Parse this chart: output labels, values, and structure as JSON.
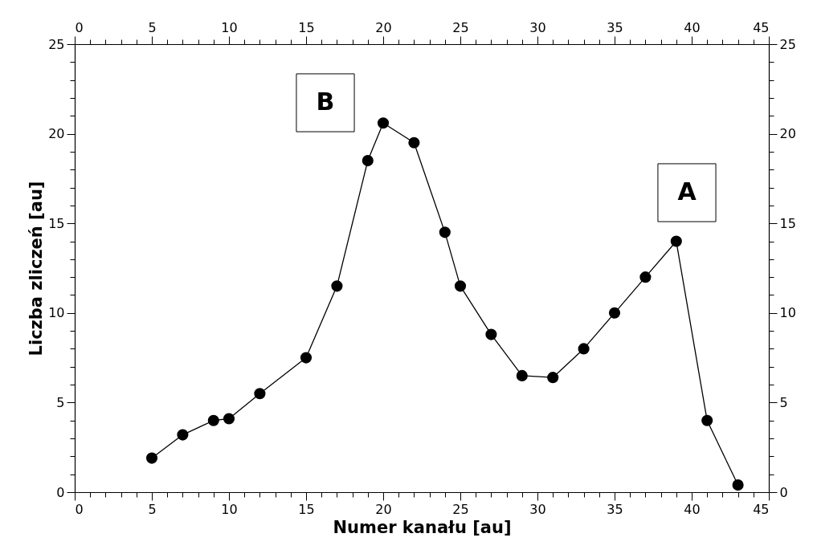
{
  "chart_data": {
    "type": "line",
    "xlabel": "Numer kanału  [au]",
    "ylabel": "Liczba zliczeń  [au]",
    "x": [
      5,
      7,
      9,
      10,
      12,
      15,
      17,
      19,
      20,
      22,
      24,
      25,
      27,
      29,
      31,
      33,
      35,
      37,
      39,
      41,
      43
    ],
    "series": [
      {
        "color": "#000000",
        "values": [
          1.9,
          3.2,
          4.0,
          4.1,
          5.5,
          7.5,
          11.5,
          18.5,
          20.6,
          19.5,
          14.5,
          11.5,
          8.8,
          6.5,
          6.4,
          8.0,
          10.0,
          12.0,
          14.0,
          4.0,
          0.4
        ]
      }
    ],
    "marker": "circle",
    "line_style": "solid",
    "legend": false,
    "xlim": [
      0,
      45
    ],
    "ylim": [
      0,
      25
    ],
    "x2lim": [
      0,
      45
    ],
    "y2lim": [
      0,
      25
    ],
    "xticks": [
      0,
      {
        "value": 1,
        "label": null
      },
      {
        "value": 2,
        "label": null
      },
      {
        "value": 3,
        "label": null
      },
      {
        "value": 4,
        "label": null
      },
      5,
      {
        "value": 6,
        "label": null
      },
      {
        "value": 7,
        "label": null
      },
      {
        "value": 8,
        "label": null
      },
      {
        "value": 9,
        "label": null
      },
      10,
      {
        "value": 11,
        "label": null
      },
      {
        "value": 12,
        "label": null
      },
      {
        "value": 13,
        "label": null
      },
      {
        "value": 14,
        "label": null
      },
      15,
      {
        "value": 16,
        "label": null
      },
      {
        "value": 17,
        "label": null
      },
      {
        "value": 18,
        "label": null
      },
      {
        "value": 19,
        "label": null
      },
      20,
      {
        "value": 21,
        "label": null
      },
      {
        "value": 22,
        "label": null
      },
      {
        "value": 23,
        "label": null
      },
      {
        "value": 24,
        "label": null
      },
      25,
      {
        "value": 26,
        "label": null
      },
      {
        "value": 27,
        "label": null
      },
      {
        "value": 28,
        "label": null
      },
      {
        "value": 29,
        "label": null
      },
      30,
      {
        "value": 31,
        "label": null
      },
      {
        "value": 32,
        "label": null
      },
      {
        "value": 33,
        "label": null
      },
      {
        "value": 34,
        "label": null
      },
      35,
      {
        "value": 36,
        "label": null
      },
      {
        "value": 37,
        "label": null
      },
      {
        "value": 38,
        "label": null
      },
      {
        "value": 39,
        "label": null
      },
      40,
      {
        "value": 41,
        "label": null
      },
      {
        "value": 42,
        "label": null
      },
      {
        "value": 43,
        "label": null
      },
      {
        "value": 44,
        "label": null
      },
      45
    ],
    "x2ticks": [
      0,
      {
        "value": 1,
        "label": null
      },
      {
        "value": 2,
        "label": null
      },
      {
        "value": 3,
        "label": null
      },
      {
        "value": 4,
        "label": null
      },
      5,
      {
        "value": 6,
        "label": null
      },
      {
        "value": 7,
        "label": null
      },
      {
        "value": 8,
        "label": null
      },
      {
        "value": 9,
        "label": null
      },
      10,
      {
        "value": 11,
        "label": null
      },
      {
        "value": 12,
        "label": null
      },
      {
        "value": 13,
        "label": null
      },
      {
        "value": 14,
        "label": null
      },
      15,
      {
        "value": 16,
        "label": null
      },
      {
        "value": 17,
        "label": null
      },
      {
        "value": 18,
        "label": null
      },
      {
        "value": 19,
        "label": null
      },
      20,
      {
        "value": 21,
        "label": null
      },
      {
        "value": 22,
        "label": null
      },
      {
        "value": 23,
        "label": null
      },
      {
        "value": 24,
        "label": null
      },
      25,
      {
        "value": 26,
        "label": null
      },
      {
        "value": 27,
        "label": null
      },
      {
        "value": 28,
        "label": null
      },
      {
        "value": 29,
        "label": null
      },
      30,
      {
        "value": 31,
        "label": null
      },
      {
        "value": 32,
        "label": null
      },
      {
        "value": 33,
        "label": null
      },
      {
        "value": 34,
        "label": null
      },
      35,
      {
        "value": 36,
        "label": null
      },
      {
        "value": 37,
        "label": null
      },
      {
        "value": 38,
        "label": null
      },
      {
        "value": 39,
        "label": null
      },
      40,
      {
        "value": 41,
        "label": null
      },
      {
        "value": 42,
        "label": null
      },
      {
        "value": 43,
        "label": null
      },
      {
        "value": 44,
        "label": null
      },
      45
    ],
    "yticks": [
      0,
      {
        "value": 1,
        "label": null
      },
      {
        "value": 2,
        "label": null
      },
      {
        "value": 3,
        "label": null
      },
      {
        "value": 4,
        "label": null
      },
      5,
      {
        "value": 6,
        "label": null
      },
      {
        "value": 7,
        "label": null
      },
      {
        "value": 8,
        "label": null
      },
      {
        "value": 9,
        "label": null
      },
      10,
      {
        "value": 11,
        "label": null
      },
      {
        "value": 12,
        "label": null
      },
      {
        "value": 13,
        "label": null
      },
      {
        "value": 14,
        "label": null
      },
      15,
      {
        "value": 16,
        "label": null
      },
      {
        "value": 17,
        "label": null
      },
      {
        "value": 18,
        "label": null
      },
      {
        "value": 19,
        "label": null
      },
      20,
      {
        "value": 21,
        "label": null
      },
      {
        "value": 22,
        "label": null
      },
      {
        "value": 23,
        "label": null
      },
      {
        "value": 24,
        "label": null
      },
      25
    ],
    "y2ticks": [
      0,
      {
        "value": 1,
        "label": null
      },
      {
        "value": 2,
        "label": null
      },
      {
        "value": 3,
        "label": null
      },
      {
        "value": 4,
        "label": null
      },
      5,
      {
        "value": 6,
        "label": null
      },
      {
        "value": 7,
        "label": null
      },
      {
        "value": 8,
        "label": null
      },
      {
        "value": 9,
        "label": null
      },
      10,
      {
        "value": 11,
        "label": null
      },
      {
        "value": 12,
        "label": null
      },
      {
        "value": 13,
        "label": null
      },
      {
        "value": 14,
        "label": null
      },
      15,
      {
        "value": 16,
        "label": null
      },
      {
        "value": 17,
        "label": null
      },
      {
        "value": 18,
        "label": null
      },
      {
        "value": 19,
        "label": null
      },
      20,
      {
        "value": 21,
        "label": null
      },
      {
        "value": 22,
        "label": null
      },
      {
        "value": 23,
        "label": null
      },
      {
        "value": 24,
        "label": null
      },
      25
    ],
    "annotations": [
      "B",
      "A"
    ]
  }
}
